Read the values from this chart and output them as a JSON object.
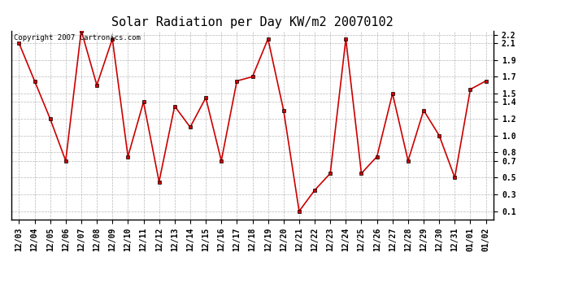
{
  "title": "Solar Radiation per Day KW/m2 20070102",
  "copyright_text": "Copyright 2007 Cartronics.com",
  "labels": [
    "12/03",
    "12/04",
    "12/05",
    "12/06",
    "12/07",
    "12/08",
    "12/09",
    "12/10",
    "12/11",
    "12/12",
    "12/13",
    "12/14",
    "12/15",
    "12/16",
    "12/17",
    "12/18",
    "12/19",
    "12/20",
    "12/21",
    "12/22",
    "12/23",
    "12/24",
    "12/25",
    "12/26",
    "12/27",
    "12/28",
    "12/29",
    "12/30",
    "12/31",
    "01/01",
    "01/02"
  ],
  "values": [
    2.1,
    1.65,
    1.2,
    0.7,
    2.25,
    1.6,
    2.15,
    0.75,
    1.4,
    0.45,
    1.35,
    1.1,
    1.45,
    0.7,
    1.65,
    1.7,
    2.15,
    1.3,
    0.1,
    0.35,
    0.55,
    2.15,
    0.55,
    0.75,
    1.5,
    0.7,
    1.3,
    1.0,
    0.5,
    1.55,
    1.65
  ],
  "line_color": "#cc0000",
  "marker_color": "#000000",
  "bg_color": "#ffffff",
  "plot_bg_color": "#ffffff",
  "grid_color": "#999999",
  "ylim": [
    0.0,
    2.25
  ],
  "yticks": [
    0.1,
    0.3,
    0.5,
    0.7,
    0.8,
    1.0,
    1.2,
    1.4,
    1.5,
    1.7,
    1.9,
    2.1,
    2.2
  ],
  "ytick_labels": [
    "0.1",
    "0.3",
    "0.5",
    "0.7",
    "0.8",
    "1.0",
    "1.2",
    "1.4",
    "1.5",
    "1.7",
    "1.9",
    "2.1",
    "2.2"
  ],
  "title_fontsize": 11,
  "label_fontsize": 7,
  "copyright_fontsize": 6.5
}
